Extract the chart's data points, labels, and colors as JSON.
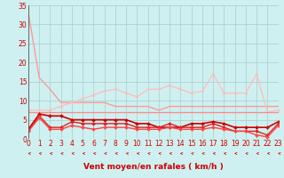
{
  "background_color": "#cff0f0",
  "grid_color": "#aacccc",
  "xlabel": "Vent moyen/en rafales ( km/h )",
  "xlim": [
    0,
    23
  ],
  "ylim": [
    0,
    35
  ],
  "yticks": [
    0,
    5,
    10,
    15,
    20,
    25,
    30,
    35
  ],
  "xticks": [
    0,
    1,
    2,
    3,
    4,
    5,
    6,
    7,
    8,
    9,
    10,
    11,
    12,
    13,
    14,
    15,
    16,
    17,
    18,
    19,
    20,
    21,
    22,
    23
  ],
  "series": [
    {
      "x": [
        0,
        1,
        2,
        3,
        4,
        5,
        6,
        7,
        8,
        9,
        10,
        11,
        12,
        13,
        14,
        15,
        16,
        17,
        18,
        19,
        20,
        21,
        22,
        23
      ],
      "y": [
        33,
        16,
        13,
        9.5,
        9.5,
        9.5,
        9.5,
        9.5,
        8.5,
        8.5,
        8.5,
        8.5,
        7.5,
        8.5,
        8.5,
        8.5,
        8.5,
        8.5,
        8.5,
        8.5,
        8.5,
        8.5,
        8.5,
        8.5
      ],
      "color": "#ff9999",
      "lw": 1.0,
      "marker": null
    },
    {
      "x": [
        0,
        1,
        2,
        3,
        4,
        5,
        6,
        7,
        8,
        9,
        10,
        11,
        12,
        13,
        14,
        15,
        16,
        17,
        18,
        19,
        20,
        21,
        22,
        23
      ],
      "y": [
        7.5,
        7.5,
        7.5,
        8.5,
        9.5,
        10.5,
        11.5,
        12.5,
        13,
        12,
        11,
        13,
        13,
        14,
        13,
        12,
        12.5,
        17,
        12,
        12,
        12,
        17,
        7,
        7.5
      ],
      "color": "#ffbbbb",
      "lw": 0.9,
      "marker": "D",
      "markersize": 1.5
    },
    {
      "x": [
        0,
        1,
        2,
        3,
        4,
        5,
        6,
        7,
        8,
        9,
        10,
        11,
        12,
        13,
        14,
        15,
        16,
        17,
        18,
        19,
        20,
        21,
        22,
        23
      ],
      "y": [
        7,
        7,
        7,
        7,
        7,
        7,
        7,
        7,
        7,
        7,
        7,
        7,
        7,
        7,
        7,
        7,
        7,
        7,
        7,
        7,
        7,
        7,
        7,
        7
      ],
      "color": "#ff8888",
      "lw": 0.9,
      "marker": null
    },
    {
      "x": [
        0,
        1,
        2,
        3,
        4,
        5,
        6,
        7,
        8,
        9,
        10,
        11,
        12,
        13,
        14,
        15,
        16,
        17,
        18,
        19,
        20,
        21,
        22,
        23
      ],
      "y": [
        2.5,
        6.5,
        6,
        6,
        5,
        5,
        5,
        5,
        5,
        5,
        4,
        4,
        3,
        3,
        3,
        4,
        4,
        4.5,
        4,
        3,
        3,
        3,
        3,
        4.5
      ],
      "color": "#cc0000",
      "lw": 1.2,
      "marker": "D",
      "markersize": 2.0
    },
    {
      "x": [
        0,
        1,
        2,
        3,
        4,
        5,
        6,
        7,
        8,
        9,
        10,
        11,
        12,
        13,
        14,
        15,
        16,
        17,
        18,
        19,
        20,
        21,
        22,
        23
      ],
      "y": [
        2,
        6,
        3,
        3,
        4.5,
        4,
        4,
        4,
        4,
        4,
        3,
        3,
        3,
        4,
        3,
        3,
        3,
        4,
        3,
        2,
        2,
        2,
        1,
        4
      ],
      "color": "#dd2222",
      "lw": 1.0,
      "marker": "D",
      "markersize": 2.0
    },
    {
      "x": [
        0,
        1,
        2,
        3,
        4,
        5,
        6,
        7,
        8,
        9,
        10,
        11,
        12,
        13,
        14,
        15,
        16,
        17,
        18,
        19,
        20,
        21,
        22,
        23
      ],
      "y": [
        2,
        5.5,
        2.5,
        2.5,
        3.5,
        3,
        2.5,
        3,
        3,
        3,
        2.5,
        2.5,
        2.5,
        3,
        2.5,
        2.5,
        2.5,
        3,
        2.5,
        2,
        2,
        1,
        0.5,
        3.5
      ],
      "color": "#ff4444",
      "lw": 1.0,
      "marker": "D",
      "markersize": 2.0
    }
  ],
  "axis_color": "#cc0000",
  "border_color": "#555555",
  "tick_fontsize": 5.5,
  "xlabel_fontsize": 6.5,
  "xlabel_fontweight": "bold"
}
